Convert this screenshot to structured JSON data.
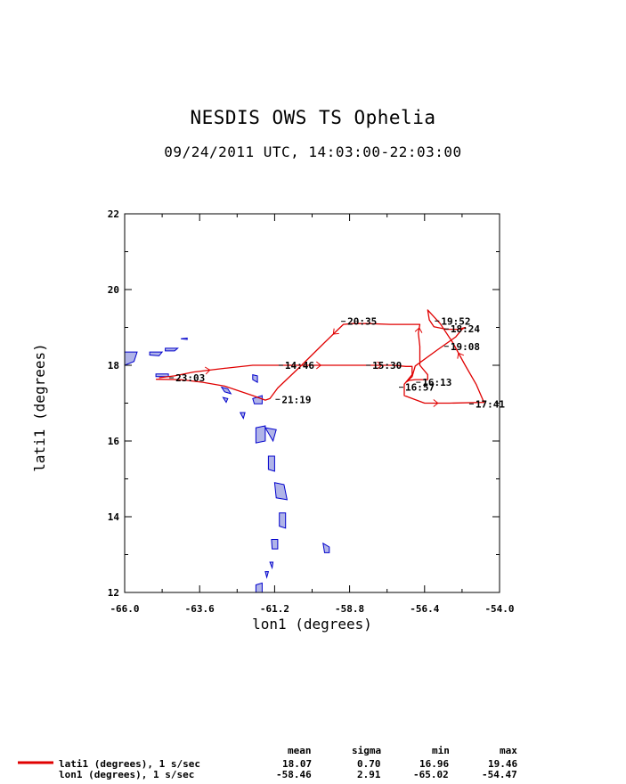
{
  "title": "NESDIS OWS TS Ophelia",
  "subtitle": "09/24/2011  UTC, 14:03:00-22:03:00",
  "colors": {
    "track": "#e00000",
    "land_fill": "#b0b4e8",
    "land_stroke": "#0000cc",
    "axis": "#000000"
  },
  "chart_data": {
    "type": "line",
    "xlabel": "lon1 (degrees)",
    "ylabel": "lati1 (degrees)",
    "xlim": [
      -66.0,
      -54.0
    ],
    "ylim": [
      12,
      22
    ],
    "x_ticks": [
      -66.0,
      -63.6,
      -61.2,
      -58.8,
      -56.4,
      -54.0
    ],
    "x_tick_labels": [
      "-66.0",
      "-63.6",
      "-61.2",
      "-58.8",
      "-56.4",
      "-54.0"
    ],
    "y_ticks": [
      12,
      14,
      16,
      18,
      20,
      22
    ],
    "y_tick_labels": [
      "12",
      "14",
      "16",
      "18",
      "20",
      "22"
    ],
    "series": [
      {
        "name": "lati1 (degrees), 1 s/sec",
        "points": [
          [
            -64.9,
            17.67
          ],
          [
            -64.4,
            17.72
          ],
          [
            -63.8,
            17.82
          ],
          [
            -62.8,
            17.92
          ],
          [
            -61.9,
            18.0
          ],
          [
            -61.2,
            18.0
          ],
          [
            -60.2,
            18.0
          ],
          [
            -59.3,
            18.0
          ],
          [
            -58.2,
            18.0
          ],
          [
            -57.4,
            18.0
          ],
          [
            -57.0,
            17.97
          ],
          [
            -56.8,
            17.97
          ],
          [
            -56.8,
            17.75
          ],
          [
            -56.95,
            17.6
          ],
          [
            -57.05,
            17.5
          ],
          [
            -57.05,
            17.2
          ],
          [
            -56.4,
            17.0
          ],
          [
            -55.6,
            17.0
          ],
          [
            -54.5,
            17.02
          ],
          [
            -54.75,
            17.5
          ],
          [
            -55.1,
            18.0
          ],
          [
            -55.5,
            18.6
          ],
          [
            -55.9,
            19.1
          ],
          [
            -56.3,
            19.46
          ],
          [
            -56.25,
            19.2
          ],
          [
            -56.1,
            19.02
          ],
          [
            -55.7,
            18.95
          ],
          [
            -55.3,
            18.95
          ],
          [
            -55.1,
            19.0
          ],
          [
            -55.2,
            18.95
          ],
          [
            -55.4,
            18.75
          ],
          [
            -56.0,
            18.4
          ],
          [
            -56.7,
            17.98
          ],
          [
            -56.8,
            17.7
          ],
          [
            -57.0,
            17.55
          ],
          [
            -56.9,
            17.6
          ],
          [
            -56.7,
            17.62
          ],
          [
            -56.3,
            17.62
          ],
          [
            -56.3,
            17.75
          ],
          [
            -56.55,
            18.0
          ],
          [
            -56.55,
            18.5
          ],
          [
            -56.6,
            18.85
          ],
          [
            -56.55,
            19.08
          ],
          [
            -57.5,
            19.08
          ],
          [
            -58.2,
            19.1
          ],
          [
            -58.7,
            19.1
          ],
          [
            -59.0,
            19.08
          ],
          [
            -59.6,
            18.6
          ],
          [
            -60.4,
            17.95
          ],
          [
            -61.1,
            17.4
          ],
          [
            -61.35,
            17.12
          ],
          [
            -61.5,
            17.08
          ],
          [
            -61.9,
            17.2
          ],
          [
            -62.8,
            17.45
          ],
          [
            -63.5,
            17.55
          ],
          [
            -64.2,
            17.62
          ],
          [
            -65.0,
            17.63
          ]
        ]
      }
    ],
    "annotations": [
      {
        "text": "23:03",
        "x": -64.4,
        "y": 17.67
      },
      {
        "text": "14:46",
        "x": -60.9,
        "y": 18.0
      },
      {
        "text": "21:19",
        "x": -61.0,
        "y": 17.1
      },
      {
        "text": "20:35",
        "x": -58.9,
        "y": 19.16
      },
      {
        "text": "15:30",
        "x": -58.1,
        "y": 18.0
      },
      {
        "text": "19:52",
        "x": -55.9,
        "y": 19.17
      },
      {
        "text": "18:24",
        "x": -55.6,
        "y": 18.96
      },
      {
        "text": "19:08",
        "x": -55.6,
        "y": 18.5
      },
      {
        "text": "16:13",
        "x": -56.5,
        "y": 17.55
      },
      {
        "text": "16:57",
        "x": -57.05,
        "y": 17.42
      },
      {
        "text": "17:41",
        "x": -54.8,
        "y": 16.98
      }
    ]
  },
  "stats_table": {
    "headers": [
      "mean",
      "sigma",
      "min",
      "max"
    ],
    "rows": [
      {
        "label": "lati1 (degrees), 1 s/sec",
        "mean": "18.07",
        "sigma": "0.70",
        "min": "16.96",
        "max": "19.46"
      },
      {
        "label": "lon1 (degrees), 1 s/sec",
        "mean": "-58.46",
        "sigma": "2.91",
        "min": "-65.02",
        "max": "-54.47"
      }
    ]
  }
}
